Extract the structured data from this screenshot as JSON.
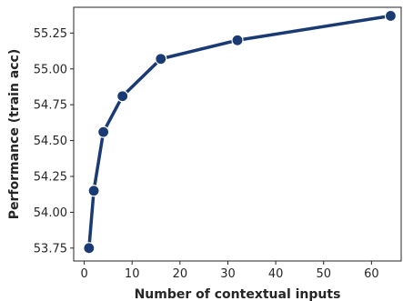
{
  "chart_data": {
    "type": "line",
    "title": "",
    "xlabel": "Number of contextual inputs",
    "ylabel": "Performance (train acc)",
    "xlim": [
      -2.2,
      66.2
    ],
    "ylim": [
      53.66,
      55.43
    ],
    "x_ticks": [
      0,
      10,
      20,
      30,
      40,
      50,
      60
    ],
    "x_tick_labels": [
      "0",
      "10",
      "20",
      "30",
      "40",
      "50",
      "60"
    ],
    "y_ticks": [
      53.75,
      54.0,
      54.25,
      54.5,
      54.75,
      55.0,
      55.25
    ],
    "y_tick_labels": [
      "53.75",
      "54.00",
      "54.25",
      "54.50",
      "54.75",
      "55.00",
      "55.25"
    ],
    "grid": false,
    "legend": "none",
    "series": [
      {
        "x": [
          1,
          2,
          4,
          8,
          16,
          32,
          64
        ],
        "y": [
          53.75,
          54.15,
          54.56,
          54.81,
          55.07,
          55.2,
          55.37
        ],
        "color": "#1a3a73",
        "marker": "circle"
      }
    ]
  }
}
